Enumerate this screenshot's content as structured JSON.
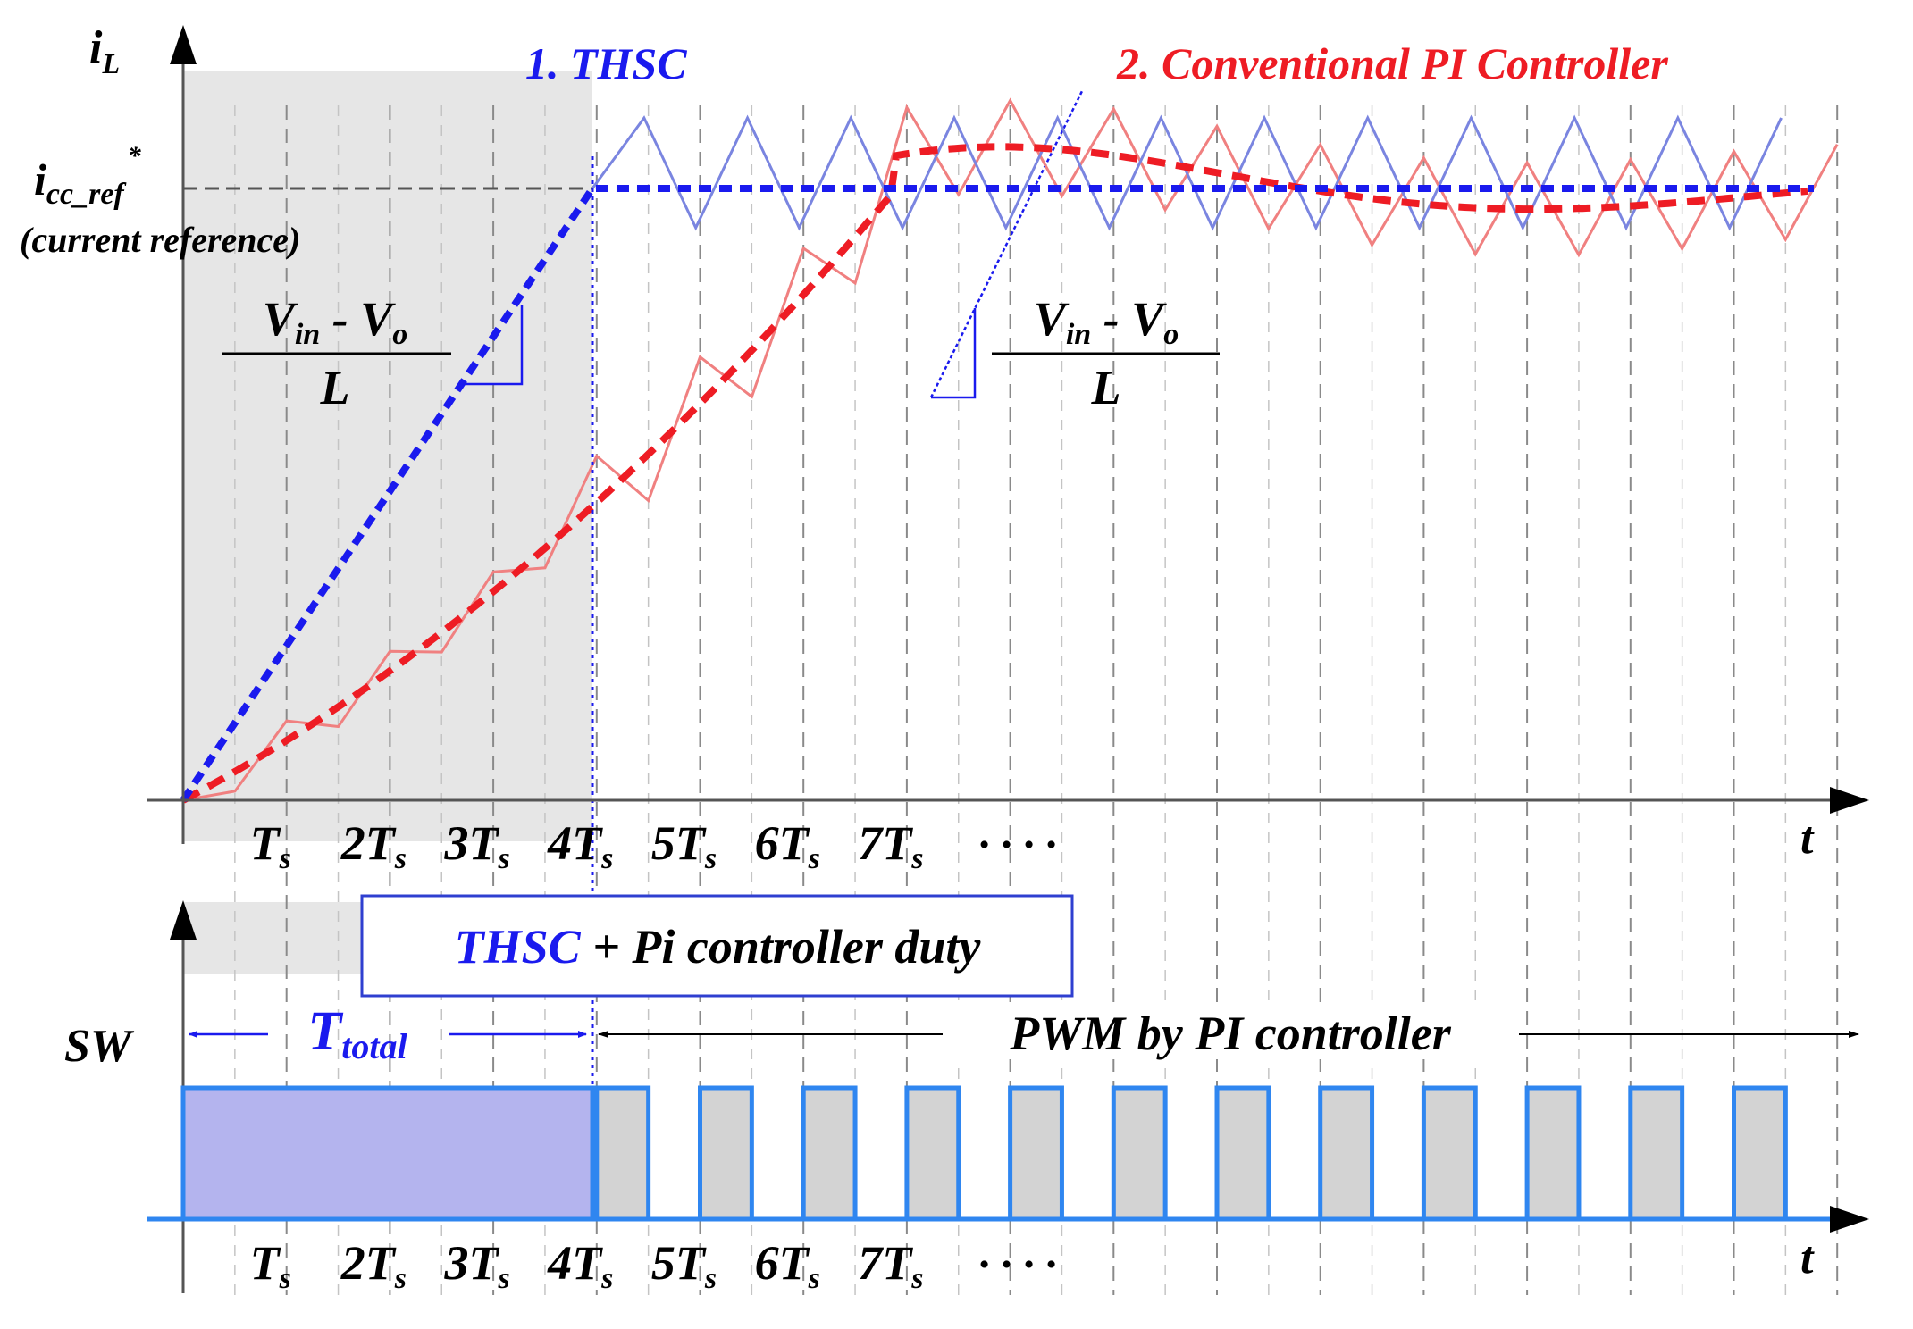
{
  "title_thsc": "1. THSC",
  "title_pi": "2. Conventional PI Controller",
  "y_axis_top": {
    "main": "i",
    "sub": "L"
  },
  "y_axis_bottom": "SW",
  "x_axis_label": "t",
  "ref_label": {
    "main": "i",
    "sub": "cc_ref",
    "sup": "*"
  },
  "ref_caption": "(current reference)",
  "slope_left": {
    "num_main1": "V",
    "num_sub1": "in",
    "num_mid": " - V",
    "num_sub2": "o",
    "den": "L"
  },
  "slope_right": {
    "num_main1": "V",
    "num_sub1": "in",
    "num_mid": " - V",
    "num_sub2": "o",
    "den": "L"
  },
  "tick_labels": [
    {
      "coef": "",
      "sub": "s"
    },
    {
      "coef": "2",
      "sub": "s"
    },
    {
      "coef": "3",
      "sub": "s"
    },
    {
      "coef": "4",
      "sub": "s"
    },
    {
      "coef": "5",
      "sub": "s"
    },
    {
      "coef": "6",
      "sub": "s"
    },
    {
      "coef": "7",
      "sub": "s"
    }
  ],
  "tick_base": "T",
  "ellipsis": "· · · ·",
  "duty_box": {
    "highlight": "THSC",
    "rest": " + Pi controller duty"
  },
  "t_total": {
    "main": "T",
    "sub": "total"
  },
  "pwm_label": "PWM by PI controller",
  "colors": {
    "thsc_blue": "#1a1aee",
    "pi_red": "#ee1c24",
    "thsc_ripple": "#7a85e0",
    "pi_ripple": "#f08080",
    "shade": "#e6e6e6",
    "pulse_fill": "#d3d3d3",
    "pulse_edge": "#2f86f0",
    "total_fill": "#b4b4ee"
  }
}
